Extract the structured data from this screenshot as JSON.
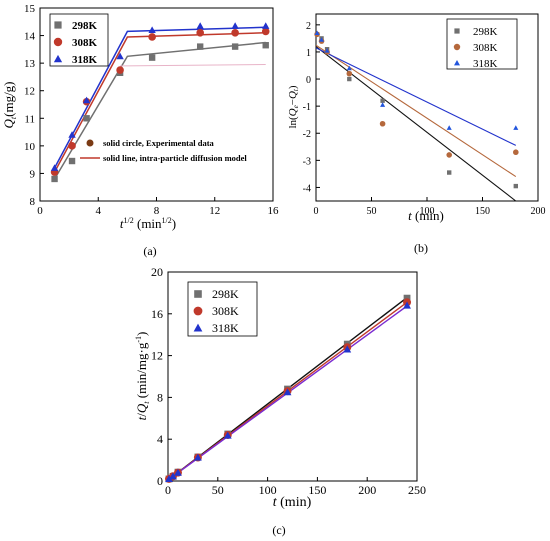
{
  "chart_data": [
    {
      "panel": "a",
      "type": "scatter",
      "caption": "(a)",
      "xlabel": "t",
      "xlabel_sup": "1/2",
      "xlabel_unit_pre": " (min",
      "xlabel_unit_sup": "1/2",
      "xlabel_unit_post": ")",
      "ylabel_italic": "Q",
      "ylabel_sub": "t",
      "ylabel_rest": "(mg/g)",
      "xlim": [
        0,
        16
      ],
      "ylim": [
        8,
        15
      ],
      "xticks": [
        0,
        4,
        8,
        12,
        16
      ],
      "yticks": [
        8,
        9,
        10,
        11,
        12,
        13,
        14,
        15
      ],
      "legend": "top-left",
      "annotation_legend": [
        {
          "label": "solid circle, Experimental data",
          "kind": "marker",
          "color": "#7a3a14"
        },
        {
          "label": "solid line, intra-particle diffusion model",
          "kind": "line",
          "color": "#c0392b"
        }
      ],
      "series": [
        {
          "name": "298K",
          "marker": "square",
          "color": "#707070",
          "points": [
            [
              1,
              8.8
            ],
            [
              2.2,
              9.45
            ],
            [
              3.2,
              11.0
            ],
            [
              5.5,
              12.65
            ],
            [
              7.7,
              13.2
            ],
            [
              11.0,
              13.6
            ],
            [
              13.4,
              13.6
            ],
            [
              15.5,
              13.65
            ]
          ],
          "line": [
            [
              1,
              8.8
            ],
            [
              6.0,
              13.25
            ],
            [
              15.5,
              13.75
            ]
          ]
        },
        {
          "name": "308K",
          "marker": "circle",
          "color": "#c0392b",
          "points": [
            [
              1,
              9.05
            ],
            [
              2.2,
              10.0
            ],
            [
              3.2,
              11.6
            ],
            [
              5.5,
              12.75
            ],
            [
              7.7,
              13.95
            ],
            [
              11.0,
              14.1
            ],
            [
              13.4,
              14.1
            ],
            [
              15.5,
              14.15
            ]
          ],
          "line": [
            [
              1,
              9.05
            ],
            [
              6.0,
              13.95
            ],
            [
              15.5,
              14.1
            ]
          ]
        },
        {
          "name": "318K",
          "marker": "triangle",
          "color": "#2233cc",
          "points": [
            [
              1,
              9.2
            ],
            [
              2.2,
              10.4
            ],
            [
              3.2,
              11.65
            ],
            [
              5.5,
              13.25
            ],
            [
              7.7,
              14.2
            ],
            [
              11.0,
              14.35
            ],
            [
              13.4,
              14.35
            ],
            [
              15.5,
              14.35
            ]
          ],
          "line": [
            [
              1,
              9.2
            ],
            [
              6.0,
              14.15
            ],
            [
              15.5,
              14.3
            ]
          ]
        }
      ]
    },
    {
      "panel": "b",
      "type": "scatter",
      "caption": "(b)",
      "xlabel": "t",
      "xlabel_unit": " (min)",
      "ylabel_pre": "ln(",
      "ylabel_q1": "Q",
      "ylabel_q1_sub": "e",
      "ylabel_minus": "−",
      "ylabel_q2": "Q",
      "ylabel_q2_sub": "t",
      "ylabel_post": ")",
      "xlim": [
        0,
        200
      ],
      "ylim": [
        -4.5,
        2.4
      ],
      "xticks": [
        0,
        50,
        100,
        150,
        200
      ],
      "yticks": [
        -4,
        -3,
        -2,
        -1,
        0,
        1,
        2
      ],
      "legend": "top-right",
      "series": [
        {
          "name": "298K",
          "marker": "square",
          "color": "#707070",
          "points": [
            [
              1,
              1.65
            ],
            [
              5,
              1.5
            ],
            [
              10,
              1.1
            ],
            [
              30,
              0.0
            ],
            [
              60,
              -0.8
            ],
            [
              120,
              -3.45
            ],
            [
              180,
              -3.95
            ]
          ],
          "line": [
            [
              0,
              1.2
            ],
            [
              180,
              -4.5
            ]
          ]
        },
        {
          "name": "308K",
          "marker": "circle",
          "color": "#b5683c",
          "points": [
            [
              1,
              1.65
            ],
            [
              5,
              1.4
            ],
            [
              10,
              1.0
            ],
            [
              30,
              0.2
            ],
            [
              60,
              -1.65
            ],
            [
              120,
              -2.8
            ],
            [
              180,
              -2.7
            ]
          ],
          "line": [
            [
              0,
              1.25
            ],
            [
              180,
              -3.6
            ]
          ]
        },
        {
          "name": "318K",
          "marker": "triangle",
          "color": "#2255dd",
          "points": [
            [
              1,
              1.7
            ],
            [
              5,
              1.45
            ],
            [
              10,
              1.05
            ],
            [
              30,
              0.4
            ],
            [
              60,
              -0.95
            ],
            [
              120,
              -1.8
            ],
            [
              180,
              -1.8
            ]
          ],
          "line": [
            [
              0,
              1.15
            ],
            [
              180,
              -2.45
            ]
          ]
        }
      ],
      "line_colors": [
        "#111111",
        "#b5683c",
        "#2233cc"
      ]
    },
    {
      "panel": "c",
      "type": "scatter",
      "caption": "(c)",
      "xlabel": "t",
      "xlabel_unit": " (min)",
      "ylabel_pre": "t",
      "ylabel_slash": "/",
      "ylabel_q": "Q",
      "ylabel_q_sub": "t",
      "ylabel_unit": " (min/mg·g",
      "ylabel_unit_sup": "-1",
      "ylabel_unit_post": ")",
      "xlim": [
        0,
        250
      ],
      "ylim": [
        0,
        20
      ],
      "xticks": [
        0,
        50,
        100,
        150,
        200,
        250
      ],
      "yticks": [
        0,
        4,
        8,
        12,
        16,
        20
      ],
      "legend": "top-left",
      "series": [
        {
          "name": "298K",
          "marker": "square",
          "color": "#707070",
          "points": [
            [
              1,
              0.2
            ],
            [
              5,
              0.45
            ],
            [
              10,
              0.85
            ],
            [
              30,
              2.3
            ],
            [
              60,
              4.5
            ],
            [
              120,
              8.8
            ],
            [
              180,
              13.1
            ],
            [
              240,
              17.5
            ]
          ],
          "line": [
            [
              0,
              0.1
            ],
            [
              240,
              17.55
            ]
          ]
        },
        {
          "name": "308K",
          "marker": "circle",
          "color": "#c0392b",
          "points": [
            [
              1,
              0.2
            ],
            [
              5,
              0.45
            ],
            [
              10,
              0.8
            ],
            [
              30,
              2.25
            ],
            [
              60,
              4.4
            ],
            [
              120,
              8.6
            ],
            [
              180,
              12.8
            ],
            [
              240,
              17.1
            ]
          ],
          "line": [
            [
              0,
              0.1
            ],
            [
              240,
              17.1
            ]
          ]
        },
        {
          "name": "318K",
          "marker": "triangle",
          "color": "#2233cc",
          "points": [
            [
              1,
              0.2
            ],
            [
              5,
              0.45
            ],
            [
              10,
              0.8
            ],
            [
              30,
              2.25
            ],
            [
              60,
              4.35
            ],
            [
              120,
              8.5
            ],
            [
              180,
              12.6
            ],
            [
              240,
              16.8
            ]
          ],
          "line": [
            [
              0,
              0.1
            ],
            [
              240,
              16.75
            ]
          ]
        }
      ],
      "line_colors": [
        "#111111",
        "#c0392b",
        "#7a2bd0"
      ]
    }
  ]
}
